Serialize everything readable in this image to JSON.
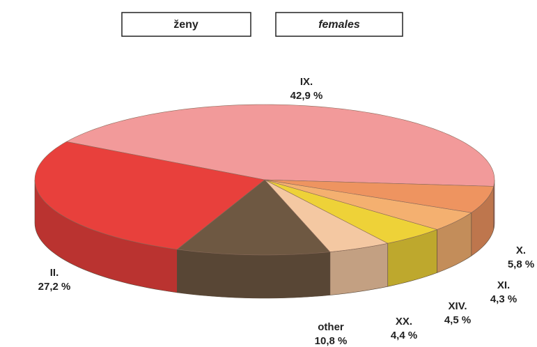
{
  "chart_data": {
    "type": "pie",
    "title": "ženy",
    "subtitle": "females",
    "categories": [
      "IX.",
      "II.",
      "other",
      "XX.",
      "XIV.",
      "XI.",
      "X."
    ],
    "values": [
      42.9,
      27.2,
      10.8,
      4.4,
      4.5,
      4.3,
      5.8
    ],
    "value_labels": [
      "42,9 %",
      "27,2 %",
      "10,8 %",
      "4,4 %",
      "4,5 %",
      "4,3 %",
      "5,8 %"
    ],
    "colors": [
      "#f29a9a",
      "#e8403c",
      "#6e5842",
      "#f4c8a2",
      "#eed238",
      "#f4b070",
      "#ee9460"
    ]
  }
}
